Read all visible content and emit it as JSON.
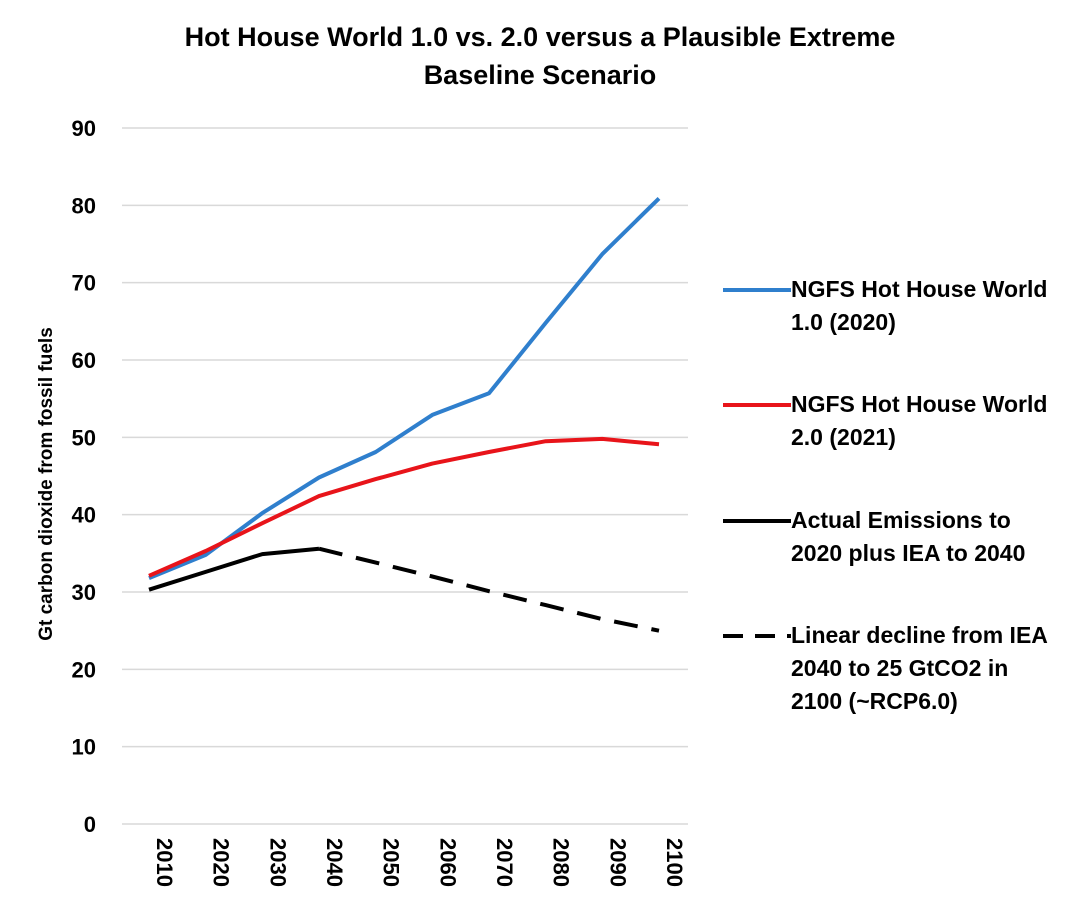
{
  "chart_data": {
    "type": "line",
    "title_lines": [
      "Hot House World 1.0 vs. 2.0 versus a Plausible Extreme",
      "Baseline Scenario"
    ],
    "ylabel": "Gt carbon dioxide from fossil fuels",
    "xlabel": "",
    "x": [
      2010,
      2020,
      2030,
      2040,
      2050,
      2060,
      2070,
      2080,
      2090,
      2100
    ],
    "x_tick_labels": [
      "2010",
      "2020",
      "2030",
      "2040",
      "2050",
      "2060",
      "2070",
      "2080",
      "2090",
      "2100"
    ],
    "ylim": [
      0,
      90
    ],
    "y_ticks": [
      0,
      10,
      20,
      30,
      40,
      50,
      60,
      70,
      80,
      90
    ],
    "grid": true,
    "legend_placement": "right",
    "series": [
      {
        "name": "NGFS Hot House World 1.0 (2020)",
        "legend_lines": [
          "NGFS Hot House World",
          "1.0 (2020)"
        ],
        "color": "#2f7fcd",
        "dash": "solid",
        "x": [
          2010,
          2020,
          2030,
          2040,
          2050,
          2060,
          2070,
          2080,
          2090,
          2100
        ],
        "values": [
          31.8,
          34.8,
          40.2,
          44.8,
          48.1,
          52.9,
          55.7,
          64.8,
          73.7,
          80.9
        ]
      },
      {
        "name": "NGFS Hot House World 2.0 (2021)",
        "legend_lines": [
          "NGFS Hot House World",
          "2.0 (2021)"
        ],
        "color": "#e8141a",
        "dash": "solid",
        "x": [
          2010,
          2020,
          2030,
          2040,
          2050,
          2060,
          2070,
          2080,
          2090,
          2100
        ],
        "values": [
          32.1,
          35.3,
          38.9,
          42.4,
          44.6,
          46.6,
          48.1,
          49.5,
          49.8,
          49.1
        ]
      },
      {
        "name": "Actual Emissions to 2020 plus IEA to 2040",
        "legend_lines": [
          "Actual Emissions to",
          "2020 plus IEA to 2040"
        ],
        "color": "#000000",
        "dash": "solid",
        "x": [
          2010,
          2020,
          2030,
          2040
        ],
        "values": [
          30.3,
          32.6,
          34.9,
          35.6
        ]
      },
      {
        "name": "Linear decline from IEA 2040 to 25 GtCO2 in 2100 (~RCP6.0)",
        "legend_lines": [
          "Linear decline from IEA",
          "2040 to 25 GtCO2 in",
          "2100 (~RCP6.0)"
        ],
        "color": "#000000",
        "dash": "dashed",
        "x": [
          2040,
          2050,
          2060,
          2070,
          2080,
          2090,
          2100
        ],
        "values": [
          35.6,
          33.8,
          32.0,
          30.1,
          28.3,
          26.5,
          25.0
        ]
      }
    ]
  }
}
